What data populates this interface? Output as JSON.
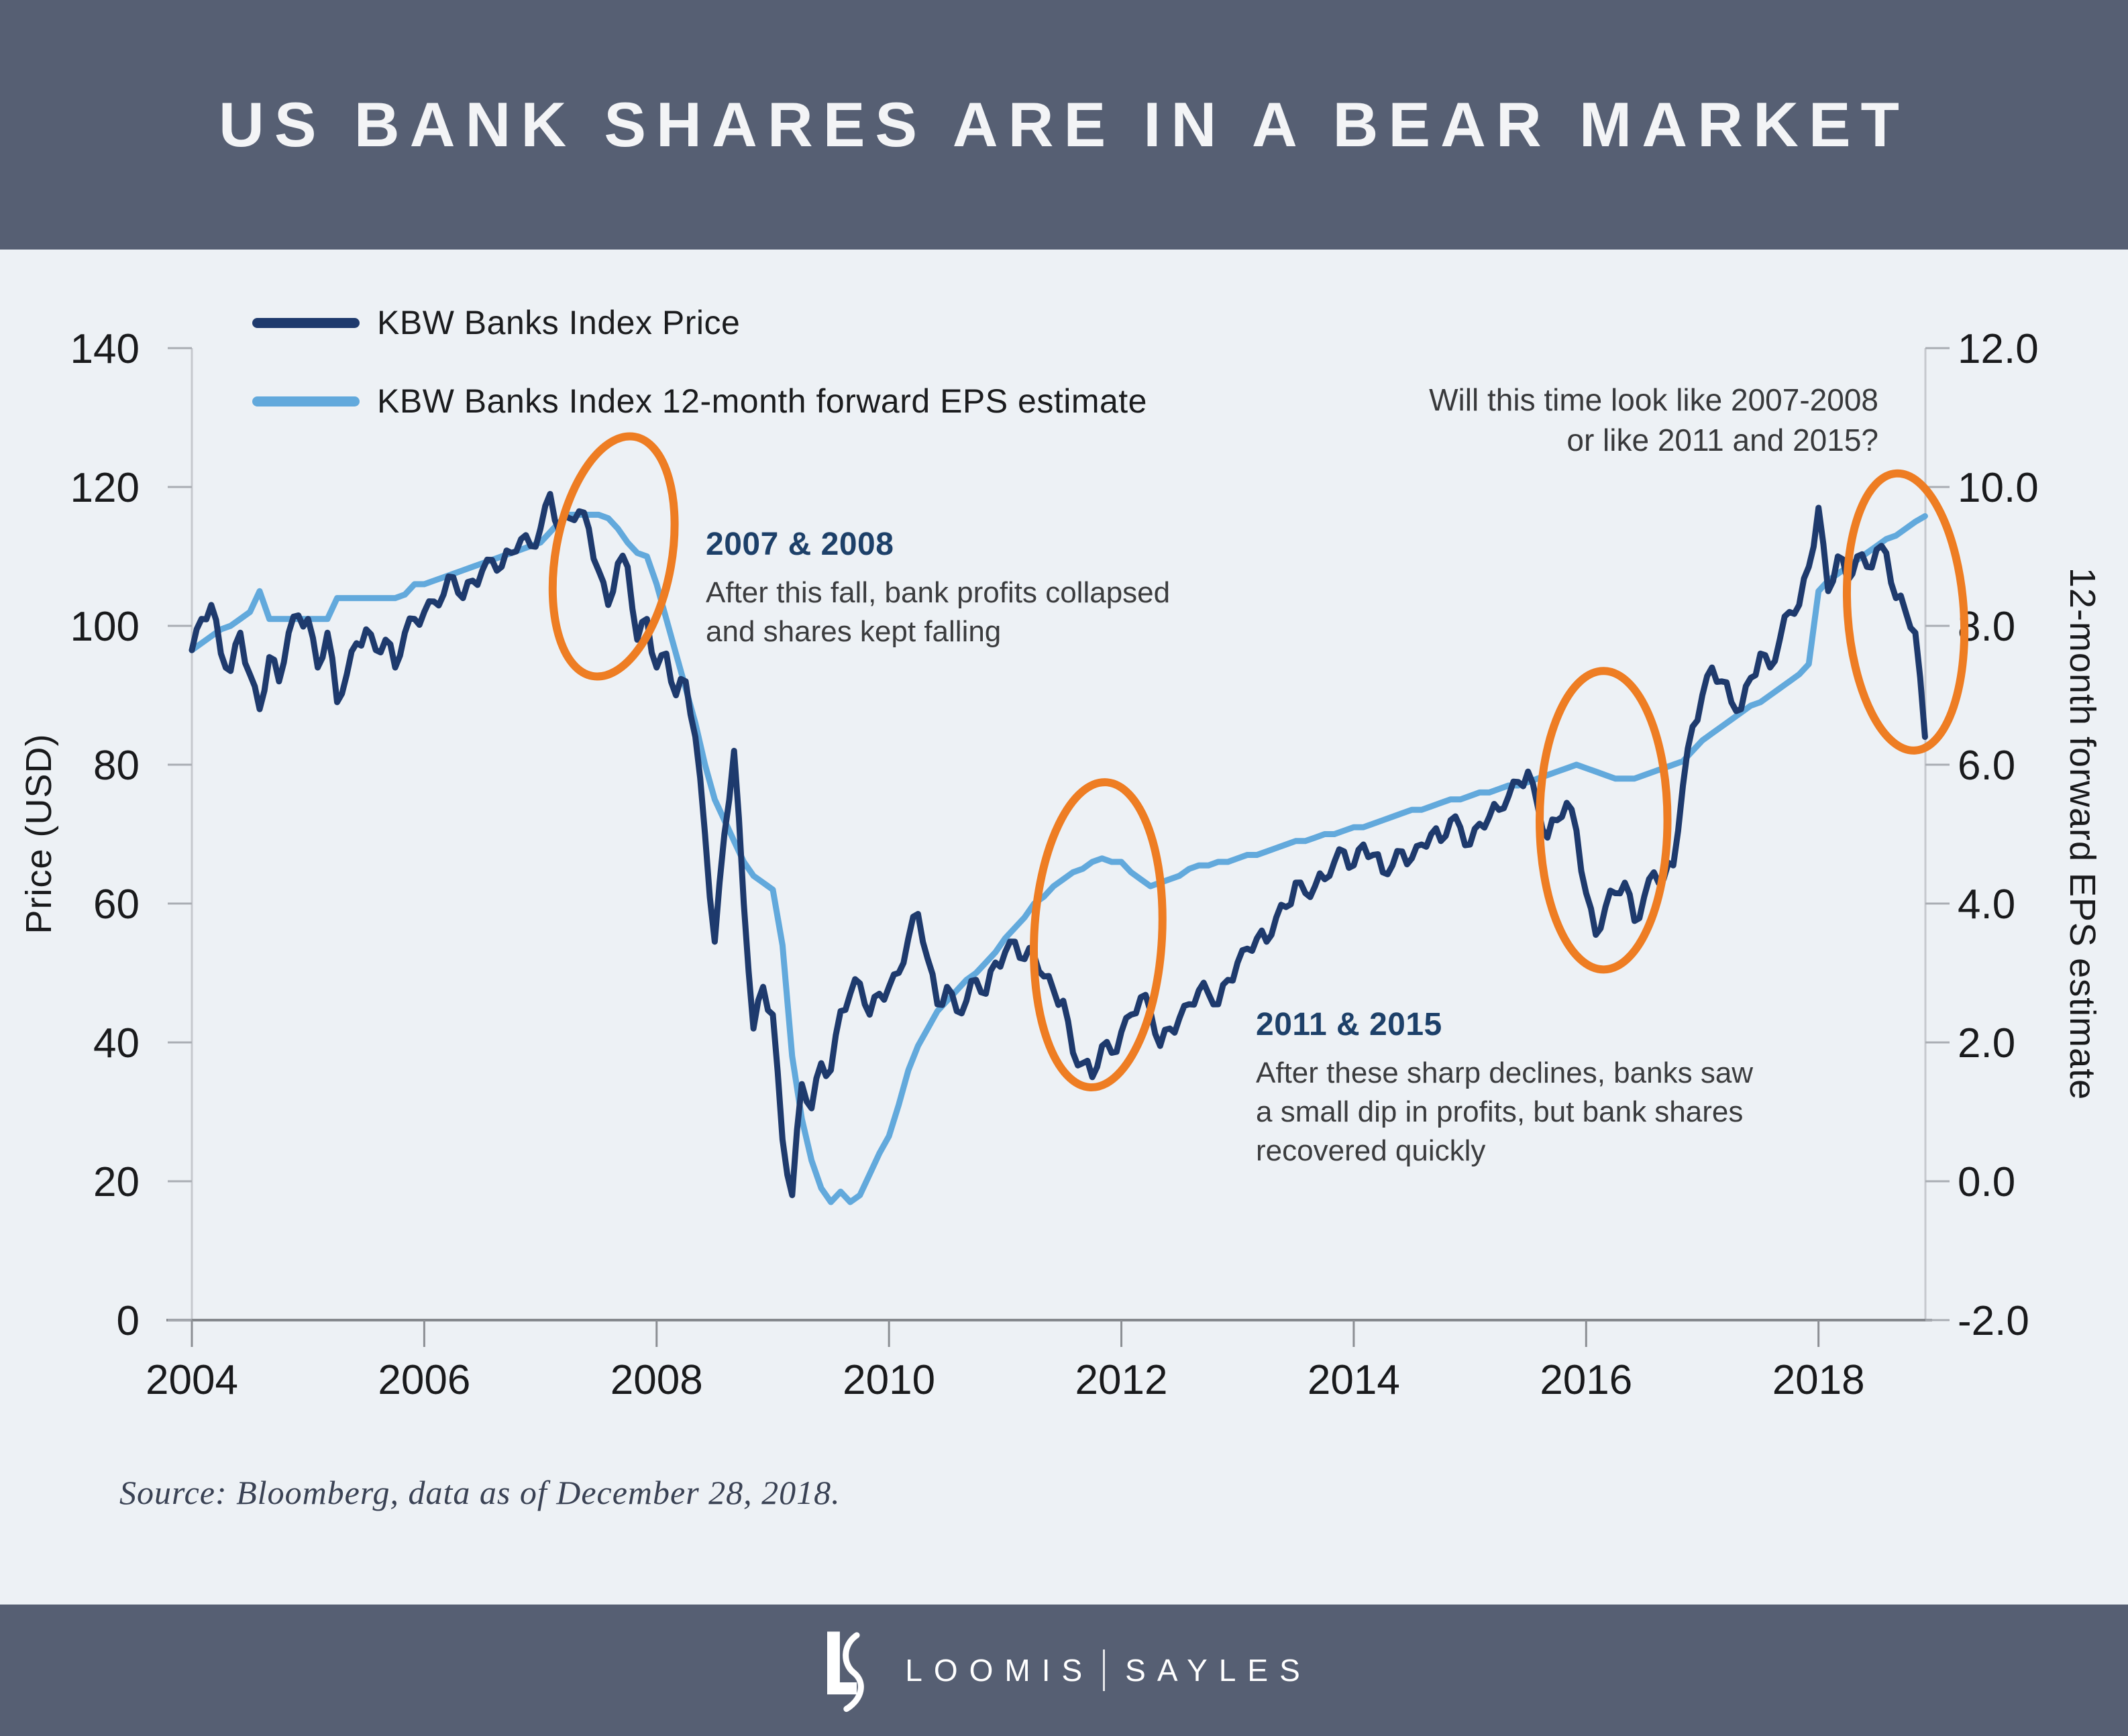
{
  "header": {
    "title": "US BANK SHARES ARE IN A BEAR MARKET"
  },
  "legend": [
    {
      "label": "KBW Banks Index Price",
      "color": "#1e3a6d"
    },
    {
      "label": "KBW Banks Index 12-month forward EPS estimate",
      "color": "#62a9dc"
    }
  ],
  "annotations": {
    "crisis": {
      "title": "2007 & 2008",
      "lines": [
        "After this fall, bank profits collapsed",
        "and shares kept falling"
      ]
    },
    "dips": {
      "title": "2011 & 2015",
      "lines": [
        "After these sharp declines, banks saw",
        "a small dip in profits, but bank shares",
        "recovered quickly"
      ]
    },
    "question": {
      "lines": [
        "Will this time look like 2007-2008",
        "or like 2011 and 2015?"
      ]
    }
  },
  "source": "Source: Bloomberg, data as of  December 28, 2018.",
  "footer": {
    "loomis": "LOOMIS",
    "sayles": "SAYLES"
  },
  "chart_data": {
    "type": "line",
    "title": "US BANK SHARES ARE IN A BEAR MARKET",
    "x_domain": [
      2004,
      2018.92
    ],
    "x_start_year": 2004,
    "x_interval_months": 1,
    "x_ticks": [
      2004,
      2006,
      2008,
      2010,
      2012,
      2014,
      2016,
      2018
    ],
    "grid": "off",
    "legend_position": "top-left",
    "left_axis": {
      "label": "Price (USD)",
      "range": [
        0,
        140
      ],
      "tick_labels": [
        "0",
        "20",
        "40",
        "60",
        "80",
        "100",
        "120",
        "140"
      ]
    },
    "right_axis": {
      "label": "12-month forward EPS estimate",
      "range": [
        -2,
        12
      ],
      "tick_labels": [
        "-2.0",
        "0.0",
        "2.0",
        "4.0",
        "6.0",
        "8.0",
        "10.0",
        "12.0"
      ]
    },
    "series": [
      {
        "name": "KBW Banks Index Price",
        "axis": "left",
        "color": "#1e3a6d",
        "values": [
          96.5,
          101,
          103,
          96,
          93.5,
          99,
          93,
          88,
          95.5,
          92,
          99,
          101.5,
          101,
          94,
          99,
          89,
          93,
          97.5,
          99.5,
          96.5,
          98,
          94,
          99,
          101,
          102,
          103.5,
          104.5,
          107,
          104,
          106.5,
          108,
          109.5,
          108.5,
          110.5,
          112.5,
          111.5,
          114,
          119,
          113.5,
          115.5,
          116.5,
          114,
          108,
          103,
          109,
          108.5,
          98,
          101,
          94,
          96,
          90,
          92,
          84,
          70,
          54.5,
          70,
          82,
          60,
          42,
          48,
          44,
          26,
          18,
          34,
          30.5,
          37,
          36,
          44.5,
          47,
          48.5,
          44,
          47,
          48,
          50,
          55,
          58.5,
          52,
          45.5,
          48,
          44.5,
          46,
          49,
          47,
          51.5,
          53,
          54.5,
          52,
          52.5,
          49.5,
          47.5,
          46,
          38.5,
          37,
          35,
          39.5,
          38.5,
          41.5,
          44,
          46.5,
          44.5,
          39.5,
          42,
          43.5,
          45.5,
          47.5,
          47,
          45.5,
          49,
          51.5,
          53.5,
          55,
          54.5,
          58,
          59.5,
          63,
          61.5,
          62.5,
          63.5,
          66,
          67.5,
          65.5,
          68.5,
          67,
          64.5,
          65.5,
          67.5,
          66.5,
          68.5,
          70,
          69,
          72,
          71,
          68.5,
          71.5,
          72.5,
          73.5,
          75.5,
          77.5,
          79,
          74,
          69.5,
          72,
          74.5,
          70.5,
          61.5,
          55.5,
          59.5,
          61.5,
          63,
          57.5,
          61,
          64.5,
          63.5,
          65.5,
          77,
          85.5,
          90,
          94,
          92,
          89,
          88,
          92.5,
          96,
          94,
          98,
          102,
          103,
          108.5,
          117,
          105,
          110,
          106.5,
          110,
          108.5,
          111,
          110.5,
          104,
          102,
          99,
          84
        ]
      },
      {
        "name": "KBW Banks Index 12-month forward EPS estimate",
        "axis": "right",
        "color": "#62a9dc",
        "values": [
          7.65,
          7.75,
          7.85,
          7.95,
          8.0,
          8.1,
          8.2,
          8.5,
          8.1,
          8.1,
          8.1,
          8.1,
          8.1,
          8.1,
          8.1,
          8.4,
          8.4,
          8.4,
          8.4,
          8.4,
          8.4,
          8.4,
          8.45,
          8.6,
          8.6,
          8.65,
          8.7,
          8.75,
          8.8,
          8.85,
          8.9,
          8.95,
          9.0,
          9.05,
          9.1,
          9.15,
          9.2,
          9.35,
          9.5,
          9.6,
          9.6,
          9.6,
          9.6,
          9.55,
          9.4,
          9.2,
          9.05,
          9.0,
          8.6,
          8.1,
          7.6,
          7.1,
          6.6,
          6.0,
          5.5,
          5.2,
          4.9,
          4.6,
          4.4,
          4.3,
          4.2,
          3.4,
          1.8,
          0.9,
          0.3,
          -0.1,
          -0.3,
          -0.15,
          -0.3,
          -0.2,
          0.1,
          0.4,
          0.65,
          1.1,
          1.6,
          1.95,
          2.2,
          2.45,
          2.6,
          2.75,
          2.9,
          3.0,
          3.15,
          3.3,
          3.5,
          3.65,
          3.8,
          4.0,
          4.1,
          4.25,
          4.35,
          4.45,
          4.5,
          4.6,
          4.65,
          4.6,
          4.6,
          4.45,
          4.35,
          4.25,
          4.3,
          4.35,
          4.4,
          4.5,
          4.55,
          4.55,
          4.6,
          4.6,
          4.65,
          4.7,
          4.7,
          4.75,
          4.8,
          4.85,
          4.9,
          4.9,
          4.95,
          5.0,
          5.0,
          5.05,
          5.1,
          5.1,
          5.15,
          5.2,
          5.25,
          5.3,
          5.35,
          5.35,
          5.4,
          5.45,
          5.5,
          5.5,
          5.55,
          5.6,
          5.6,
          5.65,
          5.7,
          5.7,
          5.75,
          5.8,
          5.85,
          5.9,
          5.95,
          6.0,
          5.95,
          5.9,
          5.85,
          5.8,
          5.8,
          5.8,
          5.85,
          5.9,
          5.95,
          6.0,
          6.05,
          6.2,
          6.35,
          6.45,
          6.55,
          6.65,
          6.75,
          6.85,
          6.9,
          7.0,
          7.1,
          7.2,
          7.3,
          7.45,
          8.5,
          8.65,
          8.75,
          8.85,
          8.95,
          9.05,
          9.15,
          9.25,
          9.3,
          9.4,
          9.5,
          9.58
        ]
      }
    ],
    "highlights": [
      {
        "cx_year": 2007.63,
        "cy_price": 110,
        "rx_years": 0.5,
        "ry_price": 17.5,
        "tilt_deg": 10,
        "color": "#ee7d23"
      },
      {
        "cx_year": 2011.8,
        "cy_price": 55.5,
        "rx_years": 0.55,
        "ry_price": 22,
        "tilt_deg": 3,
        "color": "#ee7d23"
      },
      {
        "cx_year": 2016.15,
        "cy_price": 72,
        "rx_years": 0.55,
        "ry_price": 21.5,
        "tilt_deg": 0,
        "color": "#ee7d23"
      },
      {
        "cx_year": 2018.75,
        "cy_price": 102,
        "rx_years": 0.5,
        "ry_price": 20,
        "tilt_deg": -4,
        "color": "#ee7d23"
      }
    ]
  }
}
